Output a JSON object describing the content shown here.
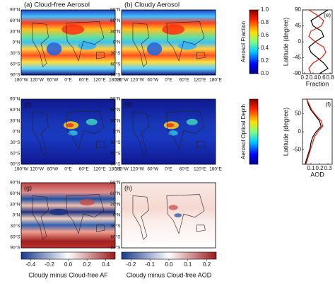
{
  "panels": [
    "(a) Cloud-free Aerosol",
    "(b) Cloudy Aerosol",
    "(c)",
    "(d)",
    "(g)",
    "(h)"
  ],
  "maps": {
    "yticklabels": [
      "90°N",
      "60°N",
      "30°N",
      "0°N",
      "30°S",
      "60°S",
      "90°S"
    ],
    "xticklabels": [
      "180°W",
      "120°W",
      "60°W",
      "0°E",
      "60°E",
      "120°E",
      "180°E"
    ]
  },
  "colorbars": [
    {
      "label": "Aerosol Fraction",
      "lim": [
        0,
        1
      ],
      "ticks": [
        {
          "value": 0,
          "label": "0.0"
        },
        0.2,
        0.4,
        0.6,
        0.8,
        {
          "value": 1,
          "label": "1.0"
        }
      ]
    },
    {
      "label": "Aerosol Optical Depth"
    },
    {
      "label": "Cloudy minus Cloud-free AF",
      "lim": [
        -0.5,
        0.5
      ],
      "ticks": [
        -0.4,
        -0.2,
        {
          "value": 0,
          "label": "0.0"
        },
        0.2,
        0.4
      ]
    },
    {
      "label": "Cloudy minus Cloud-free AOD",
      "lim": [
        -0.25,
        0.25
      ],
      "ticks": [
        -0.2,
        -0.1,
        {
          "value": 0,
          "label": "0.0"
        },
        0.1,
        0.2
      ]
    }
  ],
  "chart_data": [
    {
      "type": "line",
      "title": "(e)",
      "xlabel": "Fraction",
      "ylabel": "Latitude (degree)",
      "latitudes": [
        -90,
        -75,
        -60,
        -45,
        -30,
        -15,
        0,
        15,
        30,
        45,
        60,
        75,
        90
      ],
      "series": [
        {
          "color": "#000000",
          "values": [
            0.55,
            0.75,
            0.65,
            0.5,
            0.35,
            0.3,
            0.45,
            0.65,
            0.6,
            0.4,
            0.35,
            0.55,
            0.75
          ]
        },
        {
          "color": "#e02010",
          "values": [
            0.35,
            0.3,
            0.4,
            0.6,
            0.7,
            0.65,
            0.45,
            0.3,
            0.35,
            0.6,
            0.65,
            0.5,
            0.3
          ]
        }
      ],
      "xlim": [
        0.15,
        0.85
      ],
      "ylim": [
        -90,
        90
      ],
      "xticks": [
        0.2,
        0.4,
        0.6,
        0.8
      ],
      "yticks": [
        90,
        45,
        0,
        -45,
        -90
      ]
    },
    {
      "type": "line",
      "title": "(f)",
      "xlabel": "AOD",
      "ylabel": "Latitude (degree)",
      "latitudes": [
        -90,
        -75,
        -60,
        -45,
        -30,
        -15,
        0,
        15,
        30,
        45,
        60,
        75,
        90
      ],
      "series": [
        {
          "color": "#000000",
          "values": [
            0.03,
            0.05,
            0.07,
            0.09,
            0.1,
            0.12,
            0.16,
            0.22,
            0.2,
            0.15,
            0.1,
            0.07,
            0.05
          ]
        },
        {
          "color": "#e02010",
          "values": [
            0.04,
            0.06,
            0.08,
            0.1,
            0.12,
            0.14,
            0.18,
            0.24,
            0.22,
            0.16,
            0.11,
            0.08,
            0.05
          ]
        }
      ],
      "xlim": [
        0,
        0.35
      ],
      "ylim": [
        -90,
        90
      ],
      "xticks": [
        0.1,
        0.2,
        0.3
      ],
      "yticks": [
        50,
        0,
        -50
      ]
    }
  ]
}
